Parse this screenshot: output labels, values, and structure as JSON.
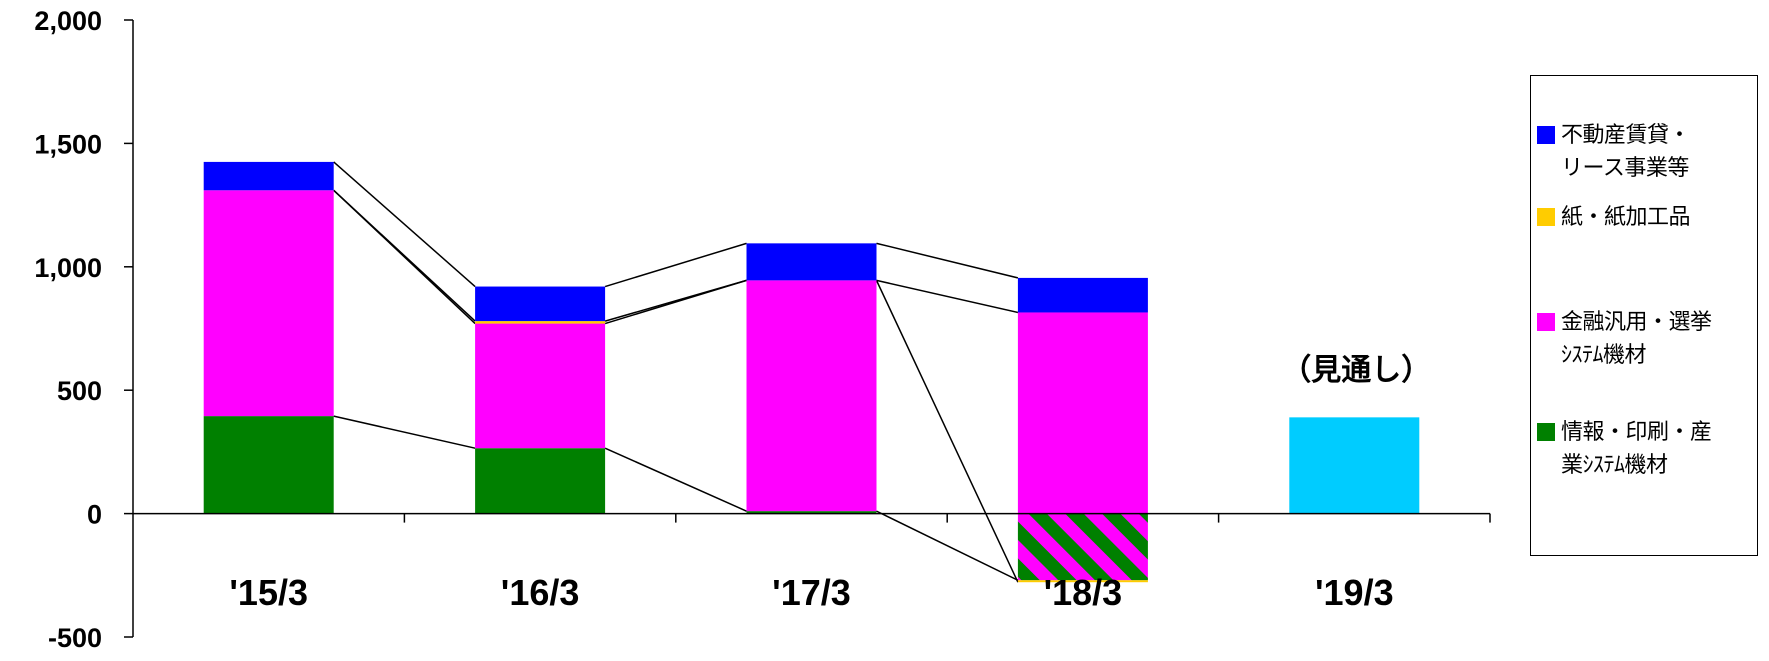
{
  "chart_data": {
    "type": "bar",
    "stacked": true,
    "categories": [
      "'15/3",
      "'16/3",
      "'17/3",
      "'18/3",
      "'19/3"
    ],
    "ylim": [
      -500,
      2000
    ],
    "yticks": [
      "2,000",
      "1,500",
      "1,000",
      "500",
      "0",
      "-500"
    ],
    "ytick_values": [
      2000,
      1500,
      1000,
      500,
      0,
      -500
    ],
    "series": [
      {
        "name": "情報・印刷・産業システム機材",
        "color": "#008000",
        "values": [
          395,
          265,
          10,
          -270,
          null
        ]
      },
      {
        "name": "金融汎用・選挙システム機材",
        "color": "#FF00FF",
        "values": [
          915,
          505,
          935,
          815,
          null
        ]
      },
      {
        "name": "紙・紙加工品",
        "color": "#FFCC00",
        "values": [
          0,
          10,
          0,
          -8,
          null
        ]
      },
      {
        "name": "不動産賃貸・リース事業等",
        "color": "#0000FF",
        "values": [
          115,
          140,
          150,
          140,
          null
        ]
      }
    ],
    "forecast": {
      "category": "'19/3",
      "value": 390,
      "color": "#00CCFF",
      "label": "（見通し）"
    },
    "negative_pattern": {
      "category": "'18/3",
      "description": "green-magenta hatched"
    },
    "legend_position": "right",
    "grid": false
  },
  "legend": {
    "items": [
      {
        "color": "#0000FF",
        "lines": [
          "不動産賃貸・",
          "リース事業等"
        ]
      },
      {
        "color": "#FFCC00",
        "lines": [
          "紙・紙加工品"
        ]
      },
      {
        "color": "#FF00FF",
        "lines": [
          "金融汎用・選挙",
          "ｼｽﾃﾑ機材"
        ]
      },
      {
        "color": "#008000",
        "lines": [
          "情報・印刷・産",
          "業ｼｽﾃﾑ機材"
        ]
      }
    ]
  }
}
